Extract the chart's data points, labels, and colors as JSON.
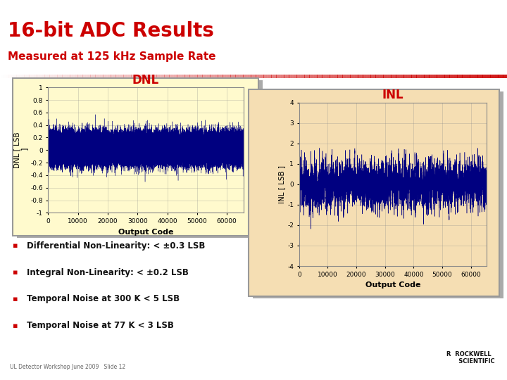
{
  "title_main": "16-bit ADC Results",
  "title_sub": "Measured at 125 kHz Sample Rate",
  "title_color": "#CC0000",
  "background_color": "#ffffff",
  "panel_bg_dnl": "#FFFACD",
  "panel_bg_inl": "#F5DEB3",
  "dnl_title": "DNL",
  "inl_title": "INL",
  "xlabel": "Output Code",
  "dnl_ylim": [
    -1.0,
    1.0
  ],
  "inl_ylim": [
    -4.0,
    4.0
  ],
  "xlim": [
    0,
    65536
  ],
  "xticks": [
    0,
    10000,
    20000,
    30000,
    40000,
    50000,
    60000
  ],
  "dnl_yticks": [
    -1,
    -0.8,
    -0.6,
    -0.4,
    -0.2,
    0,
    0.2,
    0.4,
    0.6,
    0.8,
    1
  ],
  "inl_yticks": [
    -4,
    -3,
    -2,
    -1,
    0,
    1,
    2,
    3,
    4
  ],
  "line_color": "#000080",
  "bullet_sq_color": "#CC0000",
  "bullets": [
    "Differential Non-Linearity: < ±0.3 LSB",
    "Integral Non-Linearity: < ±0.2 LSB",
    "Temporal Noise at 300 K < 5 LSB",
    "Temporal Noise at 77 K < 3 LSB"
  ],
  "footer_text": "UL Detector Workshop June 2009   Slide 12",
  "seed": 42,
  "dnl_std": 0.12,
  "inl_std": 0.5,
  "inl_walk_scale": 0.03
}
